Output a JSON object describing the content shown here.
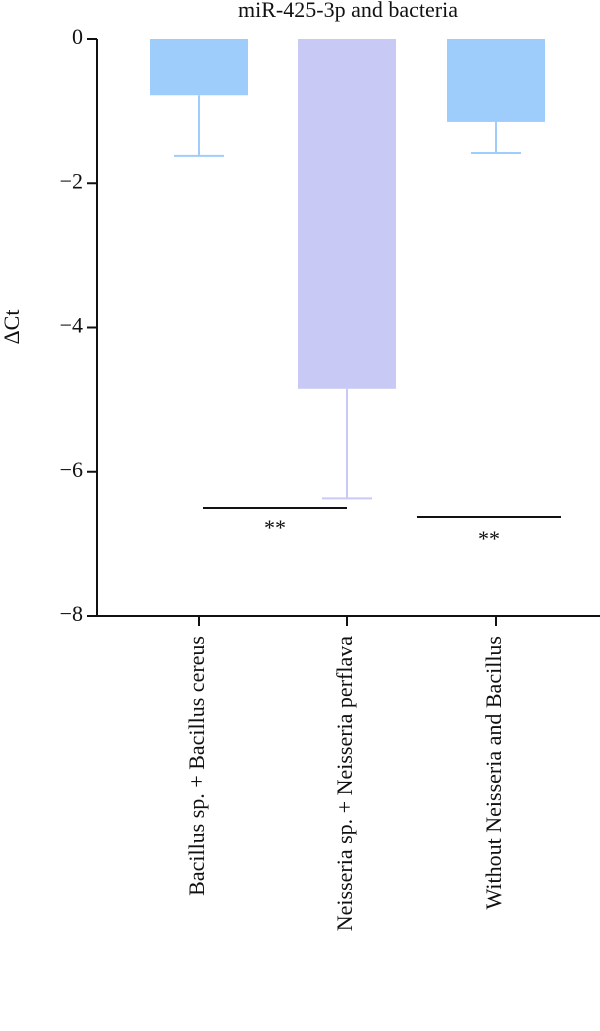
{
  "chart_data": {
    "type": "bar",
    "title": "miR-425-3p and bacteria",
    "y_label": "ΔCt",
    "categories": [
      "Bacillus sp. + Bacillus cereus",
      "Neisseria sp. + Neisseria perflava",
      "Without Neisseria and Bacillus"
    ],
    "series": [
      {
        "values": [
          -0.78,
          -4.85,
          -1.15
        ],
        "errors": [
          0.84,
          1.52,
          0.43
        ],
        "colors": [
          "#9fcdfb",
          "#c9c9f5",
          "#9fcdfb"
        ]
      }
    ],
    "ylim": [
      -8,
      0
    ],
    "yticks": [
      0,
      {
        "value": -2,
        "label": "−2"
      },
      {
        "value": -4,
        "label": "−4"
      },
      {
        "value": -6,
        "label": "−6"
      },
      {
        "value": -8,
        "label": "−8"
      }
    ],
    "annotations": [
      {
        "text": "**"
      },
      {
        "text": "**"
      }
    ]
  }
}
